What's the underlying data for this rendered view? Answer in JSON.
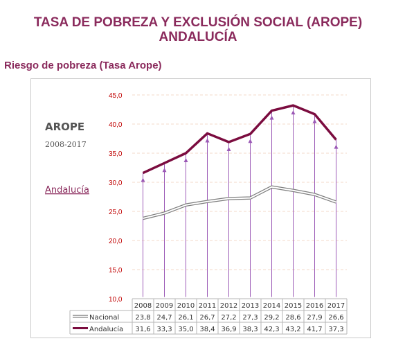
{
  "page": {
    "title_line1": "TASA DE POBREZA Y EXCLUSIÓN SOCIAL (AROPE)",
    "title_line2": "ANDALUCÍA",
    "section_title": "Riesgo de pobreza (Tasa Arope)"
  },
  "chart_data": {
    "type": "line",
    "title": "AROPE",
    "subtitle": "2008-2017",
    "region_label": "Andalucía",
    "categories": [
      "2008",
      "2009",
      "2010",
      "2011",
      "2012",
      "2013",
      "2014",
      "2015",
      "2016",
      "2017"
    ],
    "series": [
      {
        "name": "Nacional",
        "values": [
          23.8,
          24.7,
          26.1,
          26.7,
          27.2,
          27.3,
          29.2,
          28.6,
          27.9,
          26.6
        ],
        "color": "#7f7f7f"
      },
      {
        "name": "Andalucía",
        "values": [
          31.6,
          33.3,
          35.0,
          38.4,
          36.9,
          38.3,
          42.3,
          43.2,
          41.7,
          37.3
        ],
        "color": "#7b0c3f"
      }
    ],
    "y_ticks": [
      "10,0",
      "15,0",
      "20,0",
      "25,0",
      "30,0",
      "35,0",
      "40,0",
      "45,0"
    ],
    "ylim": [
      10,
      45
    ],
    "grid": true,
    "drop_lines": true,
    "data_table": true,
    "colors": {
      "tick": "#c00000",
      "drop_line": "#9b59b6",
      "grid": "#f3d9c9"
    }
  }
}
